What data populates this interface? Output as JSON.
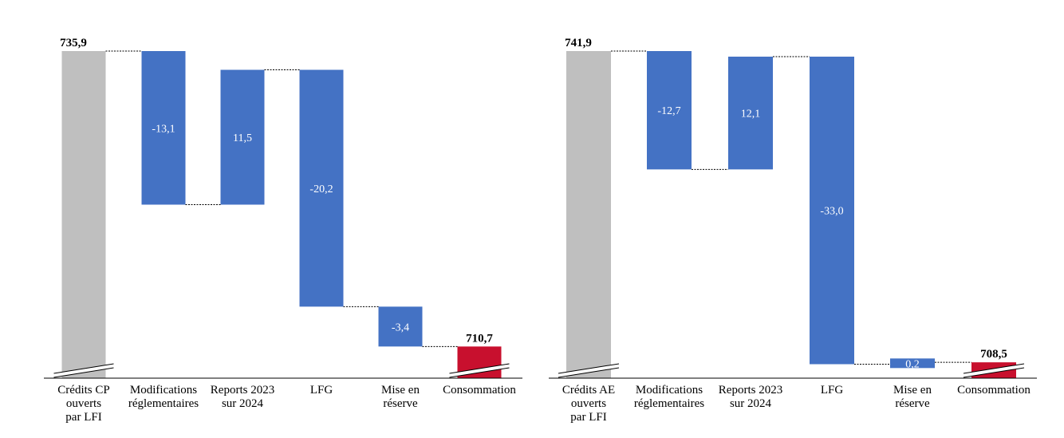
{
  "chart_data": [
    {
      "type": "waterfall",
      "title": "",
      "xlabel": "",
      "ylabel": "",
      "ylim": [
        708,
        737.5
      ],
      "axis_break": true,
      "categories": [
        [
          "Crédits CP",
          "ouverts",
          "par LFI"
        ],
        [
          "Modifications",
          "réglementaires"
        ],
        [
          "Reports 2023",
          "sur 2024"
        ],
        [
          "LFG"
        ],
        [
          "Mise en",
          "réserve"
        ],
        [
          "Consommation"
        ]
      ],
      "values": [
        735.9,
        -13.1,
        11.5,
        -20.2,
        -3.4,
        710.7
      ],
      "value_labels": [
        "735,9",
        "-13,1",
        "11,5",
        "-20,2",
        "-3,4",
        "710,7"
      ],
      "kinds": [
        "total",
        "change",
        "change",
        "change",
        "change",
        "total"
      ]
    },
    {
      "type": "waterfall",
      "title": "",
      "xlabel": "",
      "ylabel": "",
      "ylim": [
        706.8,
        743.45
      ],
      "axis_break": true,
      "categories": [
        [
          "Crédits AE",
          "ouverts",
          "par LFI"
        ],
        [
          "Modifications",
          "réglementaires"
        ],
        [
          "Reports 2023",
          "sur 2024"
        ],
        [
          "LFG"
        ],
        [
          "Mise en",
          "réserve"
        ],
        [
          "Consommation"
        ]
      ],
      "values": [
        741.9,
        -12.7,
        12.1,
        -33.0,
        0.2,
        708.5
      ],
      "value_labels": [
        "741,9",
        "-12,7",
        "12,1",
        "-33,0",
        "0,2",
        "708,5"
      ],
      "kinds": [
        "total",
        "change",
        "change",
        "change",
        "change",
        "total"
      ]
    }
  ],
  "colors": {
    "start_bar": "#bfbfbf",
    "change_bar": "#4472c4",
    "end_bar": "#c8102e",
    "connector": "#000000",
    "axis": "#000000"
  }
}
